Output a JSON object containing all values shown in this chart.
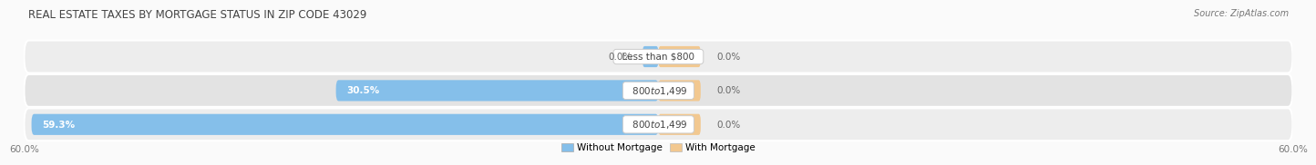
{
  "title": "REAL ESTATE TAXES BY MORTGAGE STATUS IN ZIP CODE 43029",
  "source": "Source: ZipAtlas.com",
  "rows": [
    {
      "label": "Less than $800",
      "without_mortgage": 0.0,
      "with_mortgage": 0.0,
      "wom_display": "0.0%",
      "wm_display": "0.0%"
    },
    {
      "label": "$800 to $1,499",
      "without_mortgage": 30.5,
      "with_mortgage": 0.0,
      "wom_display": "30.5%",
      "wm_display": "0.0%"
    },
    {
      "label": "$800 to $1,499",
      "without_mortgage": 59.3,
      "with_mortgage": 0.0,
      "wom_display": "59.3%",
      "wm_display": "0.0%"
    }
  ],
  "x_max": 60.0,
  "color_without": "#85BFEA",
  "color_with": "#F2C890",
  "row_bg": "#EDEDED",
  "row_bg_dark": "#E3E3E3",
  "bg_color": "#FAFAFA",
  "title_fontsize": 8.5,
  "label_fontsize": 7.5,
  "legend_fontsize": 7.5,
  "source_fontsize": 7,
  "axis_label_color": "#777777",
  "title_color": "#444444",
  "text_color_outside": "#666666",
  "text_color_inside": "#ffffff",
  "center_label_box_color": "#FFFFFF",
  "center_label_border_color": "#CCCCCC",
  "legend_without": "Without Mortgage",
  "legend_with": "With Mortgage",
  "x_axis_left_label": "60.0%",
  "x_axis_right_label": "60.0%"
}
